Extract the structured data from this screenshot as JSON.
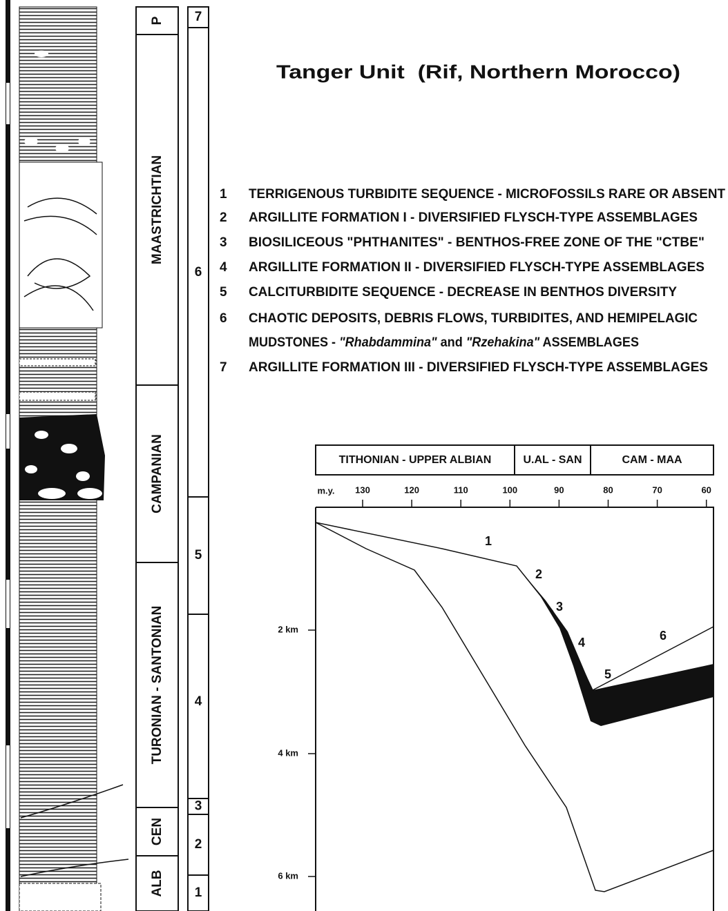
{
  "title": "Tanger Unit  (Rif, Northern Morocco)",
  "stages": [
    "P",
    "MAASTRICHTIAN",
    "CAMPANIAN",
    "TURONIAN - SANTONIAN",
    "CEN",
    "ALB"
  ],
  "units": [
    7,
    6,
    5,
    4,
    3,
    2,
    1
  ],
  "legend": [
    {
      "number": 1,
      "text": "TERRIGENOUS TURBIDITE SEQUENCE - MICROFOSSILS RARE OR ABSENT"
    },
    {
      "number": 2,
      "text": "ARGILLITE FORMATION I - DIVERSIFIED FLYSCH-TYPE ASSEMBLAGES"
    },
    {
      "number": 3,
      "text": "BIOSILICEOUS \"PHTHANITES\" - BENTHOS-FREE ZONE OF THE \"CTBE\""
    },
    {
      "number": 4,
      "text": "ARGILLITE FORMATION II - DIVERSIFIED FLYSCH-TYPE ASSEMBLAGES"
    },
    {
      "number": 5,
      "text": "CALCITURBIDITE SEQUENCE - DECREASE IN BENTHOS DIVERSITY"
    },
    {
      "number": 6,
      "text": "CHAOTIC DEPOSITS, DEBRIS FLOWS, TURBIDITES, AND HEMIPELAGIC",
      "continuation": [
        {
          "text": "MUDSTONES - "
        },
        {
          "text": "\"Rhabdammina\"",
          "italic": true
        },
        {
          "text": " and "
        },
        {
          "text": "\"Rzehakina\"",
          "italic": true
        },
        {
          "text": " ASSEMBLAGES"
        }
      ]
    },
    {
      "number": 7,
      "text": "ARGILLITE FORMATION III - DIVERSIFIED FLYSCH-TYPE ASSEMBLAGES"
    }
  ],
  "diagram": {
    "periods": [
      "TITHONIAN - UPPER ALBIAN",
      "U.AL - SAN",
      "CAM - MAA"
    ],
    "age_label": "m.y.",
    "ages": [
      130,
      120,
      110,
      100,
      90,
      80,
      70,
      60
    ],
    "depths": [
      "2 km",
      "4 km",
      "6 km"
    ],
    "curve_labels": [
      1,
      2,
      3,
      4,
      5,
      6
    ]
  }
}
